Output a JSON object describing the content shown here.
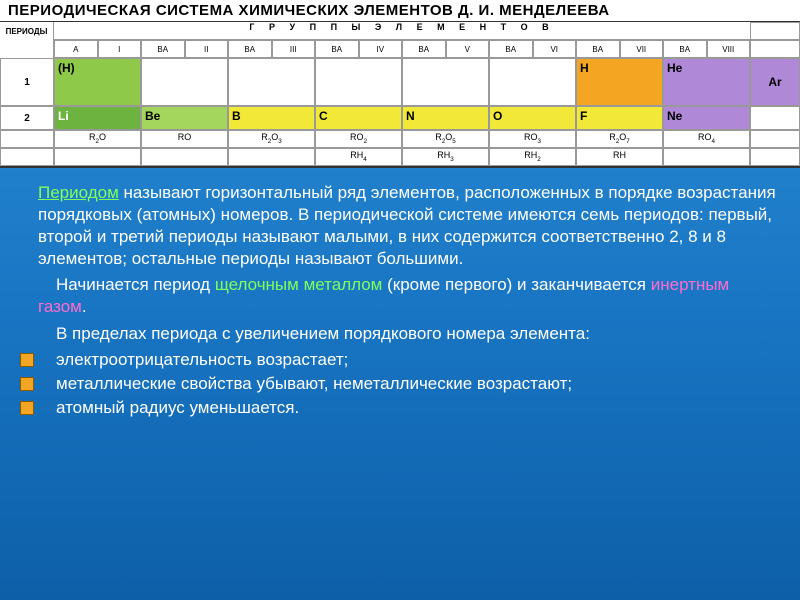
{
  "table": {
    "title": "ПЕРИОДИЧЕСКАЯ СИСТЕМА ХИМИЧЕСКИХ ЭЛЕМЕНТОВ Д. И. МЕНДЕЛЕЕВА",
    "periods_label": "ПЕРИОДЫ",
    "groups_label": "Г Р У П П Ы   Э Л Е М Е Н Т О В",
    "group_cols": [
      "A",
      "I",
      "BA",
      "II",
      "BA",
      "III",
      "BA",
      "IV",
      "BA",
      "V",
      "BA",
      "VI",
      "BA",
      "VII",
      "BA",
      "VIII"
    ],
    "periods": [
      {
        "n": "1",
        "cells": [
          {
            "sym": "(H)",
            "cls": "paren"
          },
          {
            "sym": "",
            "cls": "empty"
          },
          {
            "sym": "",
            "cls": "empty"
          },
          {
            "sym": "",
            "cls": "empty"
          },
          {
            "sym": "",
            "cls": "empty"
          },
          {
            "sym": "",
            "cls": "empty"
          },
          {
            "sym": "H",
            "cls": "orange"
          },
          {
            "sym": "He",
            "cls": "purple"
          }
        ]
      },
      {
        "n": "2",
        "cells": [
          {
            "sym": "Li",
            "cls": "green"
          },
          {
            "sym": "Be",
            "cls": "lightgreen"
          },
          {
            "sym": "B",
            "cls": "yellow"
          },
          {
            "sym": "C",
            "cls": "yellow"
          },
          {
            "sym": "N",
            "cls": "yellow"
          },
          {
            "sym": "O",
            "cls": "yellow"
          },
          {
            "sym": "F",
            "cls": "yellow"
          },
          {
            "sym": "Ne",
            "cls": "purple"
          }
        ]
      }
    ],
    "ar_element": "Ar",
    "oxide_row": [
      "R₂O",
      "RO",
      "R₂O₃",
      "RO₂",
      "R₂O₅",
      "RO₃",
      "R₂O₇",
      "RO₄"
    ],
    "hydride_row": [
      "",
      "",
      "",
      "RH₄",
      "RH₃",
      "RH₂",
      "RH",
      ""
    ]
  },
  "content": {
    "p1_term": "Периодом",
    "p1_rest": " называют горизонтальный ряд элементов, расположенных в порядке возрастания порядковых (атомных) номеров. В периодической системе имеются семь периодов: первый, второй и третий периоды называют малыми, в них содержится соответственно 2, 8 и 8 элементов; остальные периоды называют большими.",
    "p2_a": "Начинается период ",
    "p2_alkali": "щелочным металлом",
    "p2_b": " (кроме первого) и заканчивается ",
    "p2_noble": "инертным газом",
    "p2_c": ".",
    "p3": "В пределах периода с увеличением порядкового номера элемента:",
    "bullets": [
      "электроотрицательность возрастает;",
      "металлические свойства убывают, неметаллические возрастают;",
      "атомный радиус уменьшается."
    ]
  }
}
